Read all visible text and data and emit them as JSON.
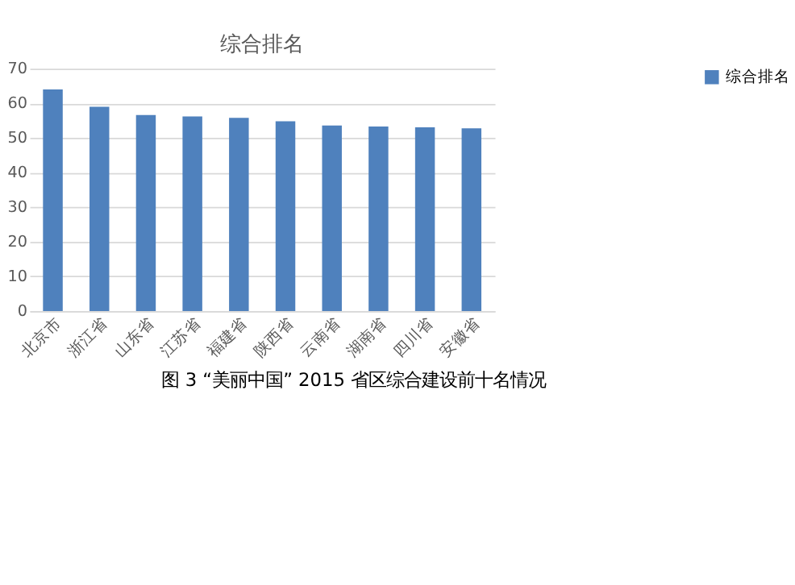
{
  "chart_data": {
    "type": "bar",
    "title": "综合排名",
    "categories": [
      "北京市",
      "浙江省",
      "山东省",
      "江苏省",
      "福建省",
      "陕西省",
      "云南省",
      "湖南省",
      "四川省",
      "安徽省"
    ],
    "series": [
      {
        "name": "综合排名",
        "color": "#4f81bd",
        "values": [
          64.0,
          59.0,
          56.6,
          56.2,
          55.8,
          54.8,
          53.6,
          53.3,
          53.1,
          52.8
        ]
      }
    ],
    "ylim": [
      0,
      70
    ],
    "yticks": [
      0,
      10,
      20,
      30,
      40,
      50,
      60,
      70
    ],
    "grid": "y",
    "legend": "right",
    "annotations": [
      "图 3 “美丽中国” 2015 省区综合建设前十名情况"
    ]
  }
}
